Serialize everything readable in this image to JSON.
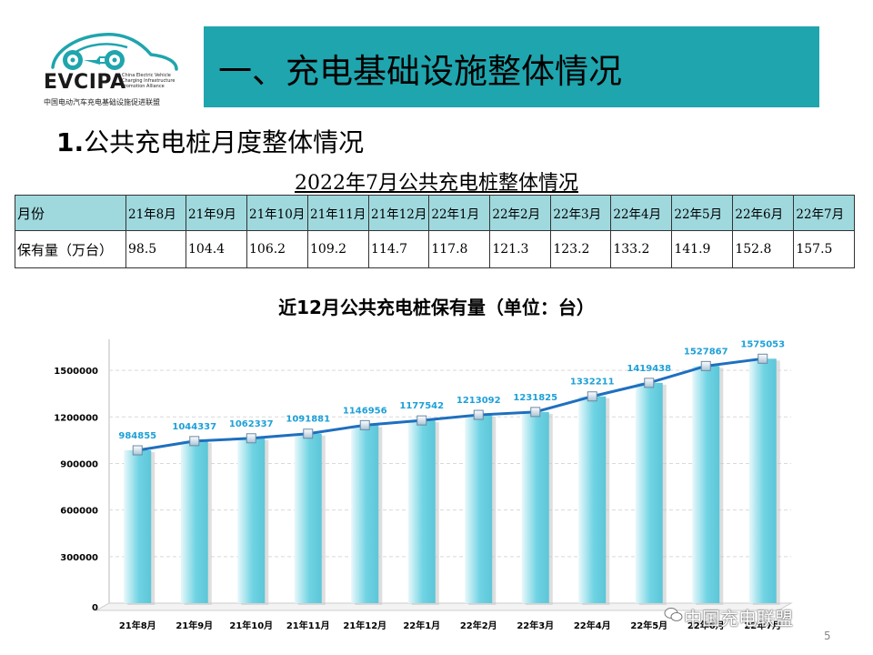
{
  "logo": {
    "brand": "EVCIPA",
    "english_lines": [
      "China Electric Vehicle",
      "Charging Infrastructure",
      "Promotion Alliance"
    ],
    "chinese_name": "中国电动汽车充电基础设施促进联盟"
  },
  "header": {
    "title": "一、充电基础设施整体情况",
    "banner_color": "#1fa5ae"
  },
  "section": {
    "number": "1.",
    "heading": "公共充电桩月度整体情况"
  },
  "table": {
    "caption": "2022年7月公共充电桩整体情况",
    "row_labels": [
      "月份",
      "保有量（万台）"
    ],
    "months": [
      "21年8月",
      "21年9月",
      "21年10月",
      "21年11月",
      "21年12月",
      "22年1月",
      "22年2月",
      "22年3月",
      "22年4月",
      "22年5月",
      "22年6月",
      "22年7月"
    ],
    "values": [
      "98.5",
      "104.4",
      "106.2",
      "109.2",
      "114.7",
      "117.8",
      "121.3",
      "123.2",
      "133.2",
      "141.9",
      "152.8",
      "157.5"
    ],
    "header_color": "#9fd9de"
  },
  "chart_data": {
    "type": "bar",
    "title": "近12月公共充电桩保有量（单位：台）",
    "categories": [
      "21年8月",
      "21年9月",
      "21年10月",
      "21年11月",
      "21年12月",
      "22年1月",
      "22年2月",
      "22年3月",
      "22年4月",
      "22年5月",
      "22年6月",
      "22年7月"
    ],
    "series": [
      {
        "values": [
          984855,
          1044337,
          1062337,
          1091881,
          1146956,
          1177542,
          1213092,
          1231825,
          1332211,
          1419438,
          1527867,
          1575053
        ],
        "bar_color": "#6fd3e3",
        "line_color": "#1f6fbf",
        "label_color": "#1ea0d8"
      }
    ],
    "yticks": [
      0,
      300000,
      600000,
      900000,
      1200000,
      1500000
    ],
    "ylim": [
      0,
      1500000
    ],
    "grid": true
  },
  "watermark": "中国充电联盟",
  "page_number": "5"
}
